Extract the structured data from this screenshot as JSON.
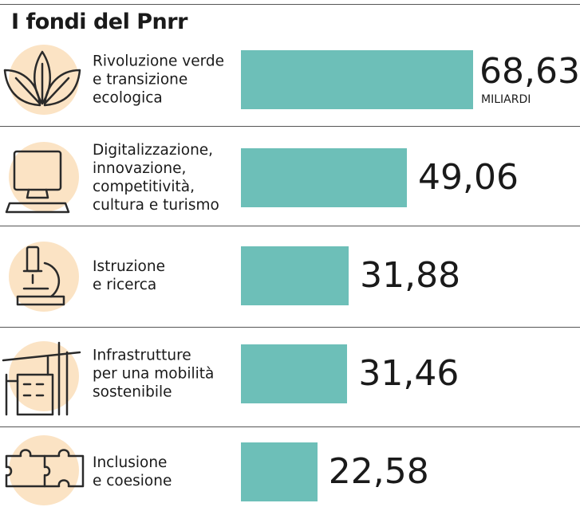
{
  "chart_data": {
    "type": "bar",
    "orientation": "horizontal",
    "title": "I fondi del Pnrr",
    "categories": [
      "Rivoluzione verde\ne transizione\necologica",
      "Digitalizzazione,\ninnovazione,\ncompetitività,\ncultura e turismo",
      "Istruzione\ne ricerca",
      "Infrastrutture\nper una mobilità\nsostenibile",
      "Inclusione\ne coesione"
    ],
    "values": [
      68.63,
      49.06,
      31.88,
      31.46,
      22.58
    ],
    "value_labels": [
      "68,63",
      "49,06",
      "31,88",
      "31,46",
      "22,58"
    ],
    "unit": "MILIARDI",
    "color": "#6dbfb8"
  }
}
